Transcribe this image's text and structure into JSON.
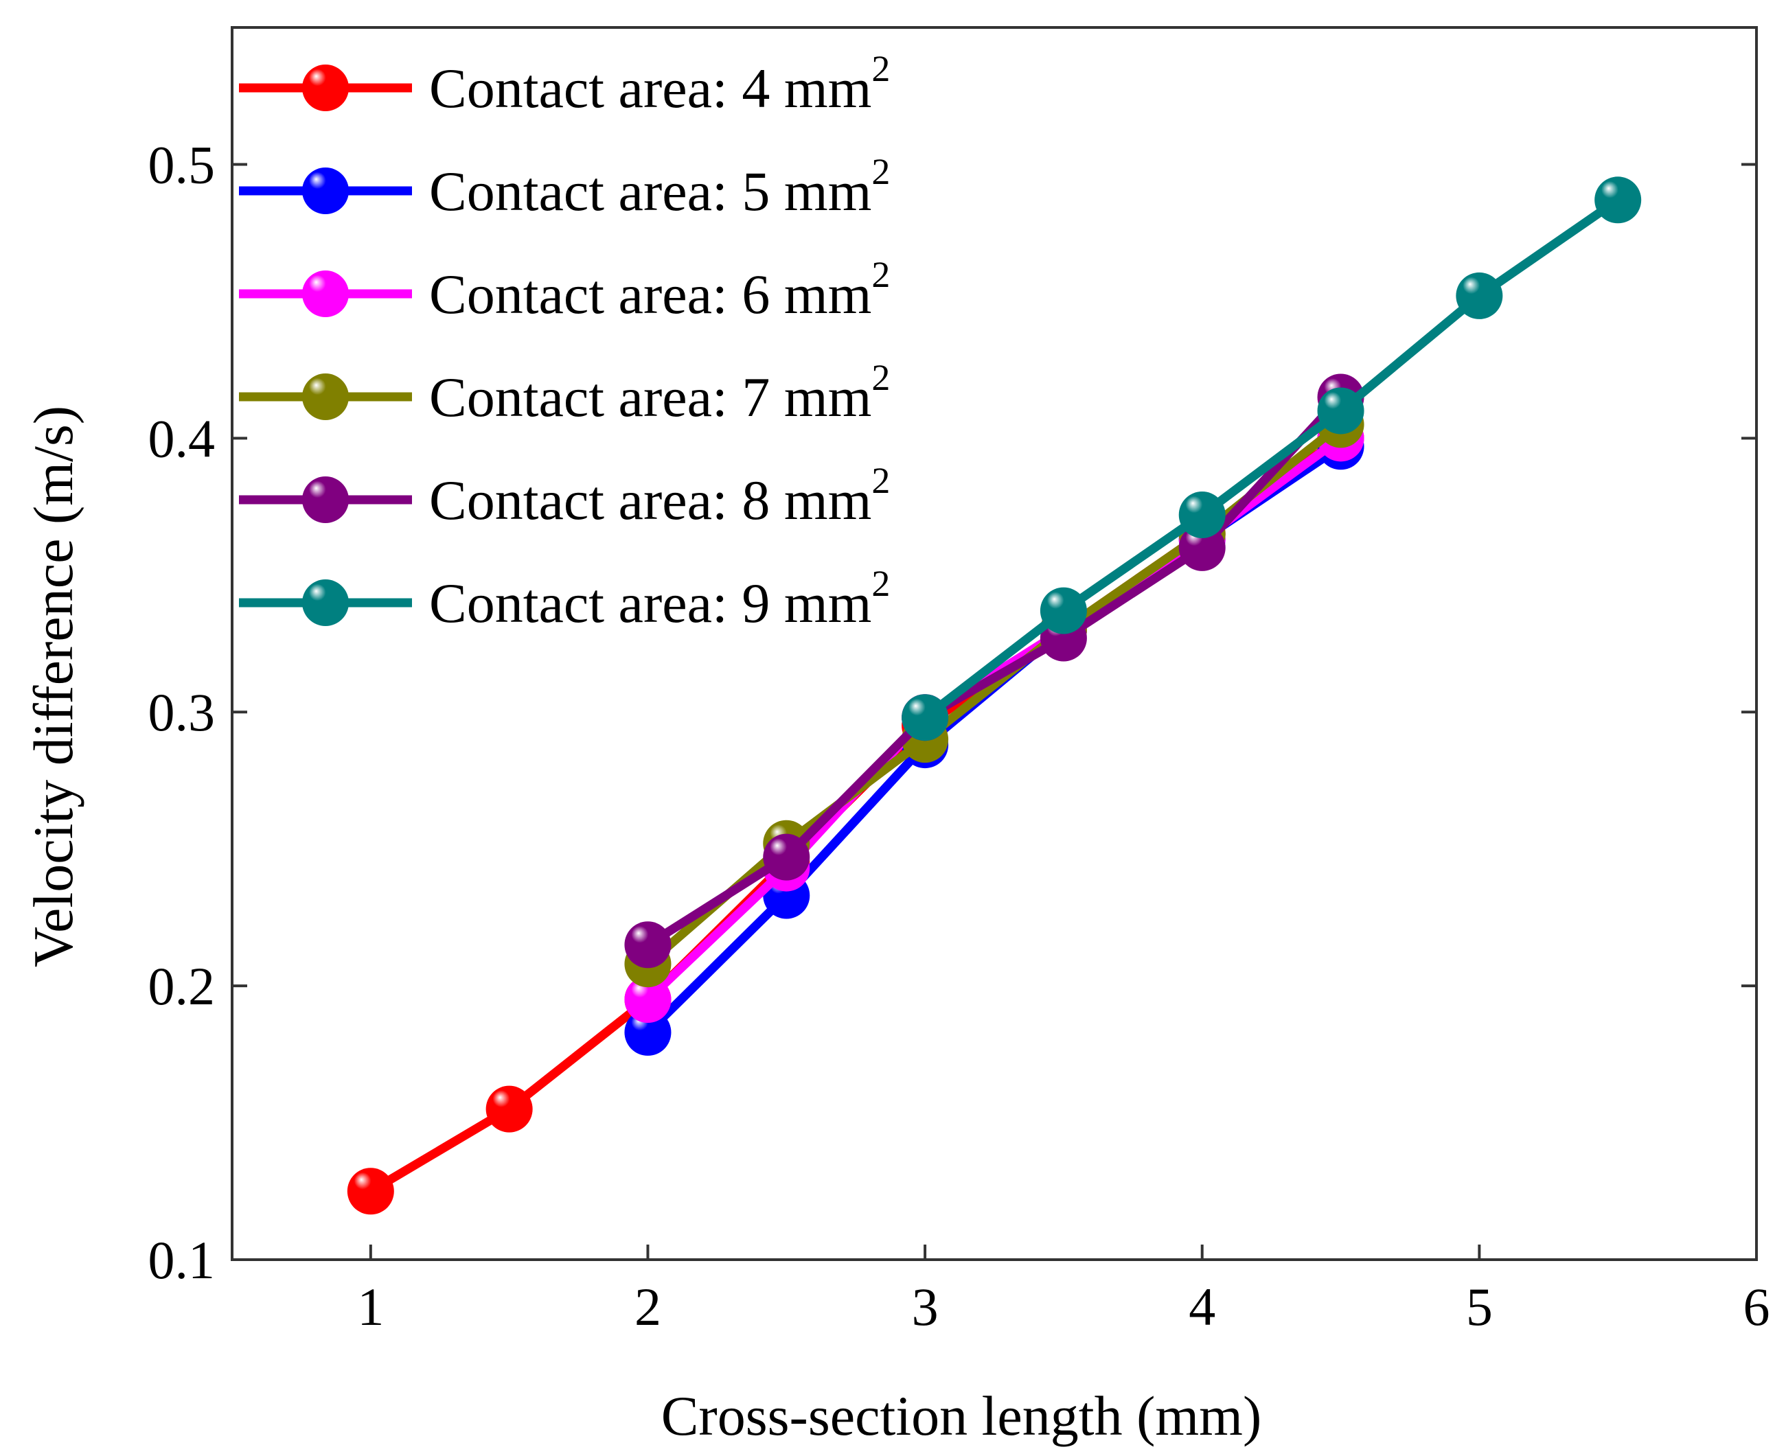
{
  "chart_data": {
    "type": "line",
    "title": "",
    "xlabel": "Cross-section length (mm)",
    "ylabel": "Velocity difference (m/s)",
    "xlim": [
      0.5,
      6
    ],
    "ylim": [
      0.1,
      0.55
    ],
    "xticks": [
      1,
      2,
      3,
      4,
      5,
      6
    ],
    "yticks": [
      0.1,
      0.2,
      0.3,
      0.4,
      0.5
    ],
    "xtick_labels": [
      "1",
      "2",
      "3",
      "4",
      "5",
      "6"
    ],
    "ytick_labels": [
      "0.1",
      "0.2",
      "0.3",
      "0.4",
      "0.5"
    ],
    "grid": false,
    "legend_position": "top-left",
    "series": [
      {
        "name": "Contact area: 4 mm",
        "unit_superscript": "2",
        "color": "#ff0000",
        "x": [
          1,
          1.5,
          2,
          2.5,
          3,
          3.5,
          4,
          4.5
        ],
        "y": [
          0.125,
          0.155,
          0.195,
          0.245,
          0.295,
          0.33,
          0.365,
          0.4
        ]
      },
      {
        "name": "Contact area: 5 mm",
        "unit_superscript": "2",
        "color": "#0000ff",
        "x": [
          2,
          2.5,
          3,
          3.5,
          4,
          4.5
        ],
        "y": [
          0.183,
          0.233,
          0.288,
          0.33,
          0.363,
          0.397
        ]
      },
      {
        "name": "Contact area: 6 mm",
        "unit_superscript": "2",
        "color": "#ff00ff",
        "x": [
          2,
          2.5,
          3,
          3.5,
          4,
          4.5
        ],
        "y": [
          0.195,
          0.243,
          0.298,
          0.33,
          0.363,
          0.4
        ]
      },
      {
        "name": "Contact area: 7 mm",
        "unit_superscript": "2",
        "color": "#808000",
        "x": [
          2,
          2.5,
          3,
          3.5,
          4,
          4.5
        ],
        "y": [
          0.208,
          0.252,
          0.29,
          0.33,
          0.365,
          0.405
        ]
      },
      {
        "name": "Contact area: 8 mm",
        "unit_superscript": "2",
        "color": "#800080",
        "x": [
          2,
          2.5,
          3,
          3.5,
          4,
          4.5
        ],
        "y": [
          0.215,
          0.247,
          0.298,
          0.327,
          0.36,
          0.415
        ]
      },
      {
        "name": "Contact area: 9 mm",
        "unit_superscript": "2",
        "color": "#008080",
        "x": [
          3,
          3.5,
          4,
          4.5,
          5,
          5.5
        ],
        "y": [
          0.298,
          0.337,
          0.372,
          0.41,
          0.452,
          0.487
        ]
      }
    ]
  }
}
